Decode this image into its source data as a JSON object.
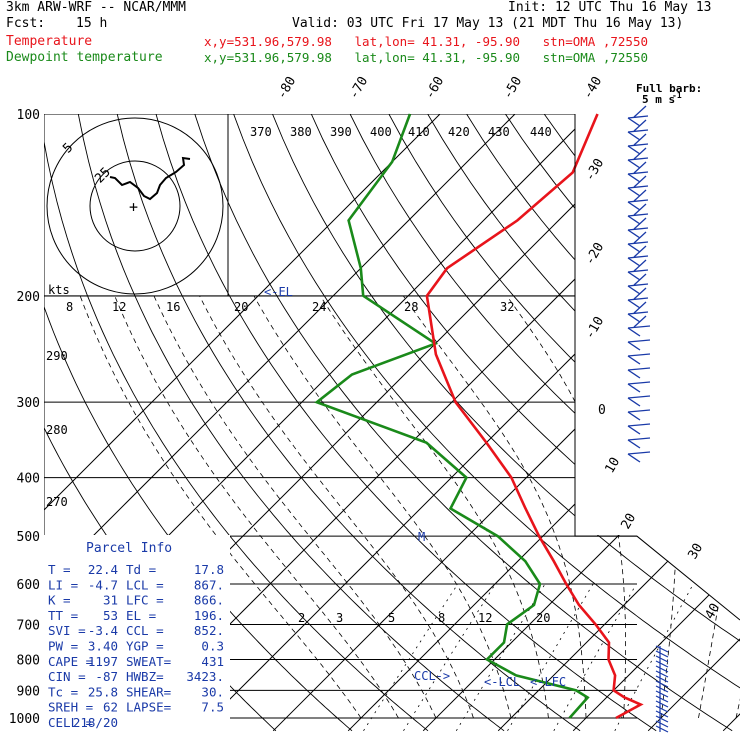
{
  "header": {
    "model": "3km ARW-WRF -- NCAR/MMM",
    "init": "Init: 12 UTC Thu 16 May 13",
    "fcst_label": "Fcst:",
    "fcst_value": "15 h",
    "valid": "Valid: 03 UTC Fri 17 May 13 (21 MDT Thu 16 May 13)",
    "temp_label": "Temperature",
    "dew_label": "Dewpoint temperature",
    "loc_info": "x,y=531.96,579.98   lat,lon= 41.31, -95.90   stn=OMA ,72550"
  },
  "colors": {
    "temperature": "#e8141b",
    "dewpoint": "#1a8a1a",
    "wind_barbs": "#1a3aa8",
    "grid": "#000000",
    "annotation": "#1a3aa8"
  },
  "chart_data": {
    "type": "skew-T log-P sounding",
    "pressure_levels": [
      100,
      200,
      300,
      400,
      500,
      600,
      700,
      800,
      900,
      1000
    ],
    "isotherm_labels": [
      "-80",
      "-70",
      "-60",
      "-50",
      "-40",
      "-30",
      "-20",
      "-10",
      "0",
      "10",
      "20",
      "30",
      "40"
    ],
    "isotherms": [
      -80,
      -70,
      -60,
      -50,
      -40,
      -30,
      -20,
      -10,
      0,
      10,
      20,
      30,
      40
    ],
    "theta_labels": [
      "370",
      "380",
      "390",
      "400",
      "410",
      "420",
      "430",
      "440"
    ],
    "theta_low_labels": [
      "290",
      "280",
      "270"
    ],
    "mixing_ratio_labels": [
      "2",
      "3",
      "5",
      "8",
      "12",
      "20"
    ],
    "wind_speed_labels": [
      "kts",
      "8",
      "12",
      "16",
      "20",
      "24",
      "28",
      "32"
    ],
    "hodograph_rings": [
      "5",
      "25"
    ],
    "barb_units": "Full barb:\n5 m s⁻¹",
    "temperature": [
      {
        "p": 1000,
        "t": 24.0
      },
      {
        "p": 950,
        "t": 25.5
      },
      {
        "p": 925,
        "t": 22.4
      },
      {
        "p": 900,
        "t": 20.0
      },
      {
        "p": 850,
        "t": 18.2
      },
      {
        "p": 800,
        "t": 15.2
      },
      {
        "p": 750,
        "t": 13.0
      },
      {
        "p": 700,
        "t": 8.8
      },
      {
        "p": 650,
        "t": 4.0
      },
      {
        "p": 600,
        "t": -0.5
      },
      {
        "p": 550,
        "t": -5.2
      },
      {
        "p": 500,
        "t": -10.5
      },
      {
        "p": 450,
        "t": -16.0
      },
      {
        "p": 400,
        "t": -22.0
      },
      {
        "p": 350,
        "t": -30.0
      },
      {
        "p": 300,
        "t": -39.5
      },
      {
        "p": 250,
        "t": -48.5
      },
      {
        "p": 200,
        "t": -57.5
      },
      {
        "p": 180,
        "t": -58.5
      },
      {
        "p": 150,
        "t": -55.5
      },
      {
        "p": 125,
        "t": -54.5
      },
      {
        "p": 100,
        "t": -59.0
      }
    ],
    "dewpoint": [
      {
        "p": 1000,
        "t": 17.8
      },
      {
        "p": 950,
        "t": 17.6
      },
      {
        "p": 925,
        "t": 17.5
      },
      {
        "p": 900,
        "t": 15.0
      },
      {
        "p": 850,
        "t": 5.0
      },
      {
        "p": 800,
        "t": -1.0
      },
      {
        "p": 750,
        "t": -1.0
      },
      {
        "p": 700,
        "t": -3.0
      },
      {
        "p": 650,
        "t": -2.0
      },
      {
        "p": 600,
        "t": -4.0
      },
      {
        "p": 550,
        "t": -9.0
      },
      {
        "p": 500,
        "t": -16.0
      },
      {
        "p": 450,
        "t": -26.0
      },
      {
        "p": 400,
        "t": -28.0
      },
      {
        "p": 350,
        "t": -38.0
      },
      {
        "p": 300,
        "t": -58.0
      },
      {
        "p": 270,
        "t": -57.0
      },
      {
        "p": 240,
        "t": -50.0
      },
      {
        "p": 200,
        "t": -66.0
      },
      {
        "p": 180,
        "t": -70.0
      },
      {
        "p": 150,
        "t": -78.0
      },
      {
        "p": 120,
        "t": -80.0
      },
      {
        "p": 100,
        "t": -84.0
      }
    ],
    "annotations": [
      {
        "label": "<-EL",
        "p": 196
      },
      {
        "label": "<-LCL",
        "p": 867
      },
      {
        "label": "<-LFC",
        "p": 866
      },
      {
        "label": "CCL->",
        "p": 852
      },
      {
        "label": "M",
        "p": 500
      }
    ],
    "parcel_info_title": "Parcel Info",
    "parcel_info": [
      [
        "T  =",
        "22.4",
        "Td =",
        "17.8"
      ],
      [
        "LI =",
        "-4.7",
        "LCL =",
        "867."
      ],
      [
        "K  =",
        "31",
        "LFC =",
        "866."
      ],
      [
        "TT =",
        "53",
        "EL  =",
        "196."
      ],
      [
        "SVI =",
        "-3.4",
        "CCL =",
        "852."
      ],
      [
        "PW =",
        "3.40",
        "YGP =",
        "0.3"
      ],
      [
        "CAPE =",
        "1197",
        "SWEAT=",
        "431"
      ],
      [
        "CIN =",
        "-87",
        "HWBZ=",
        "3423."
      ],
      [
        "Tc =",
        "25.8",
        "SHEAR=",
        "30."
      ],
      [
        "SREH =",
        "62",
        "LAPSE=",
        "7.5"
      ],
      [
        "CELL =",
        "218/20",
        "",
        ""
      ]
    ]
  }
}
